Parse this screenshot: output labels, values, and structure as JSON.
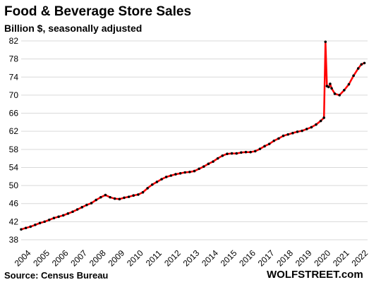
{
  "chart_data": {
    "type": "line",
    "title": "Food & Beverage Store Sales",
    "subtitle": "Billion $, seasonally adjusted",
    "source": "Source: Census Bureau",
    "brand": "WOLFSTREET.com",
    "xlim": [
      2004.0,
      2022.5
    ],
    "ylim": [
      38,
      82
    ],
    "y_ticks": [
      38,
      42,
      46,
      50,
      54,
      58,
      62,
      66,
      70,
      74,
      78,
      82
    ],
    "x_ticks": [
      "2004",
      "2005",
      "2006",
      "2007",
      "2008",
      "2009",
      "2010",
      "2011",
      "2012",
      "2013",
      "2014",
      "2015",
      "2016",
      "2017",
      "2018",
      "2019",
      "2020",
      "2021",
      "2022"
    ],
    "grid": "horizontal",
    "line_color": "#ff0000",
    "marker_color": "#000000",
    "series": [
      {
        "x": [
          2004.0,
          2004.25,
          2004.5,
          2004.75,
          2005.0,
          2005.25,
          2005.5,
          2005.75,
          2006.0,
          2006.25,
          2006.5,
          2006.75,
          2007.0,
          2007.25,
          2007.5,
          2007.75,
          2008.0,
          2008.25,
          2008.5,
          2008.75,
          2009.0,
          2009.25,
          2009.5,
          2009.75,
          2010.0,
          2010.25,
          2010.5,
          2010.75,
          2011.0,
          2011.25,
          2011.5,
          2011.75,
          2012.0,
          2012.25,
          2012.5,
          2012.75,
          2013.0,
          2013.25,
          2013.5,
          2013.75,
          2014.0,
          2014.25,
          2014.5,
          2014.75,
          2015.0,
          2015.25,
          2015.5,
          2015.75,
          2016.0,
          2016.25,
          2016.5,
          2016.75,
          2017.0,
          2017.25,
          2017.5,
          2017.75,
          2018.0,
          2018.25,
          2018.5,
          2018.75,
          2019.0,
          2019.25,
          2019.5,
          2019.75,
          2020.0,
          2020.17,
          2020.25,
          2020.33,
          2020.42,
          2020.5,
          2020.58,
          2020.75,
          2021.0,
          2021.25,
          2021.5,
          2021.75,
          2022.0,
          2022.17,
          2022.33
        ],
        "y": [
          40.3,
          40.6,
          40.9,
          41.3,
          41.7,
          42.0,
          42.4,
          42.8,
          43.1,
          43.4,
          43.8,
          44.2,
          44.7,
          45.2,
          45.7,
          46.1,
          46.8,
          47.4,
          47.9,
          47.4,
          47.1,
          47.0,
          47.3,
          47.5,
          47.8,
          48.0,
          48.5,
          49.4,
          50.2,
          50.8,
          51.4,
          51.9,
          52.2,
          52.5,
          52.7,
          52.9,
          53.0,
          53.2,
          53.7,
          54.2,
          54.8,
          55.3,
          56.0,
          56.6,
          57.0,
          57.1,
          57.1,
          57.3,
          57.4,
          57.4,
          57.6,
          58.1,
          58.7,
          59.2,
          59.9,
          60.4,
          61.0,
          61.3,
          61.6,
          61.9,
          62.1,
          62.5,
          62.9,
          63.5,
          64.3,
          65.0,
          81.8,
          72.0,
          71.8,
          72.5,
          71.5,
          70.3,
          70.0,
          71.1,
          72.4,
          74.3,
          75.9,
          76.8,
          77.1
        ]
      }
    ]
  }
}
